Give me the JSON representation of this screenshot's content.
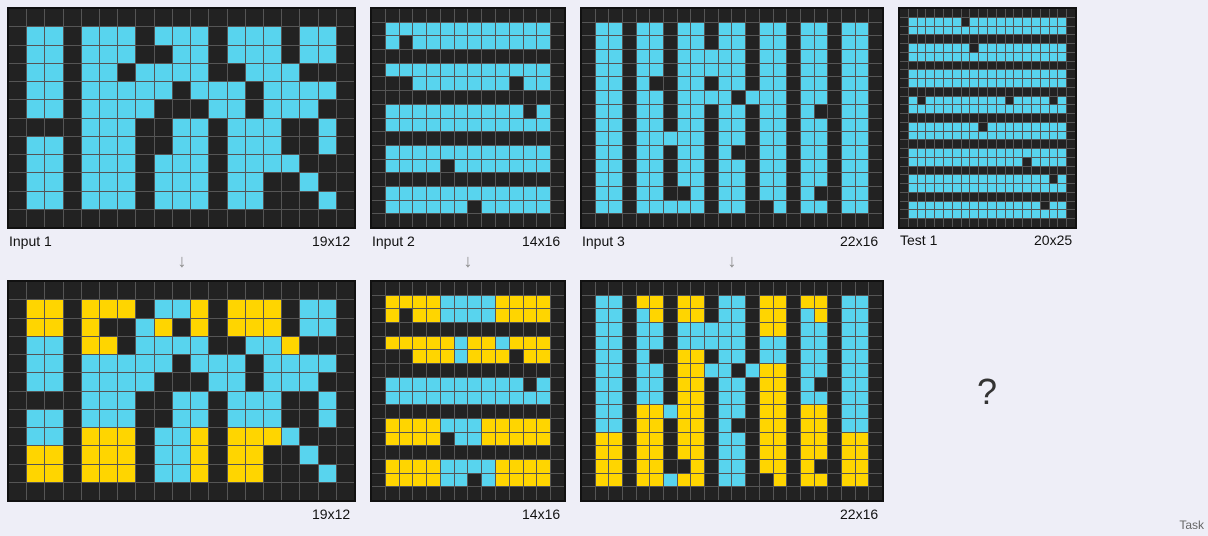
{
  "colors": {
    "black": "#222222",
    "cyan": "#58d4ee",
    "magenta": "#f216c6",
    "yellow": "#ffd500"
  },
  "pairs": [
    {
      "input_label": "Input 1",
      "input_size": "19x12",
      "output_size": "19x12"
    },
    {
      "input_label": "Input 2",
      "input_size": "14x16",
      "output_size": "14x16"
    },
    {
      "input_label": "Input 3",
      "input_size": "22x16",
      "output_size": "22x16"
    }
  ],
  "test": {
    "label": "Test 1",
    "size": "20x25",
    "output_placeholder": "?"
  },
  "footer": {
    "task_label": "Task"
  },
  "grids": {
    "in1": [
      "0000000000000000000",
      "0110111011101110110",
      "0110111001101110110",
      "0110110111100111000",
      "0110111110111011110",
      "0110111100011011100",
      "0000111001101110010",
      "0110111001101110010",
      "0110111011101111000",
      "0110111011101100100",
      "0110111011101100010",
      "0000000000000000000"
    ],
    "out1": [
      "0000000000000000000",
      "0330333011303330110",
      "0330300130303330110",
      "0110330111100113000",
      "0110111110111011110",
      "0110111100011011100",
      "0000111001101110010",
      "0110111001101110010",
      "0110333011303331000",
      "0330333011303300100",
      "0330333011303300010",
      "0000000000000000000"
    ],
    "in2": [
      "00000000000000",
      "01111111111110",
      "01011111111110",
      "00000000000000",
      "01111111111110",
      "00011111110110",
      "00000000000000",
      "01111111111010",
      "01111111111110",
      "00000000000000",
      "01111111111110",
      "01111011111110",
      "00000000000000",
      "01111111111110",
      "01111110111110",
      "00000000000000"
    ],
    "out2": [
      "00000000000000",
      "03333111133330",
      "03033111133330",
      "00000000000000",
      "03333313313330",
      "00033313330330",
      "00000000000000",
      "01111111111010",
      "01111111111110",
      "00000000000000",
      "03333111333330",
      "03333011333330",
      "00000000000000",
      "03333111133330",
      "03333110133330",
      "00000000000000"
    ],
    "in3": [
      "0000000000000000000000",
      "0110110110110110110110",
      "0110110110110110110110",
      "0110110111110110110110",
      "0110110111110110110110",
      "0110100110110110110110",
      "0110110111101110110110",
      "0110110110110110100110",
      "0110110110110110110110",
      "0110111110110110110110",
      "0110110110100110110110",
      "0110110110110110110110",
      "0110110110110110110110",
      "0110110010110110100110",
      "0110111110110010110110",
      "0000000000000000000000"
    ],
    "out3": [
      "0000000000000000000000",
      "0110330330110330330110",
      "0110130330110330130110",
      "0110110111110330110110",
      "0110110111110110110110",
      "0110100330110110110110",
      "0110110331101330110110",
      "0110110330110330100110",
      "0110110330110330110110",
      "0110331330110330330110",
      "0110330330100330330110",
      "0330330330110330330330",
      "0330330330110330330330",
      "0330330030110330300330",
      "0330331330110030330330",
      "0000000000000000000000"
    ],
    "test": [
      "00000000000000000000",
      "01111110111111111110",
      "01111111111111111110",
      "00000000000000000000",
      "01111111011111111110",
      "01111111111111111110",
      "00000000000000000000",
      "01111111111111111110",
      "01111111111111111110",
      "00000000000000000000",
      "01011111111101111010",
      "01111111111111111110",
      "00000000000000000000",
      "01111111101111111110",
      "01111111111111111110",
      "00000000000000000000",
      "01111111111111111110",
      "01111111111111011110",
      "00000000000000000000",
      "01111111111111111010",
      "01111111111111111110",
      "00000000000000000000",
      "01111111111111110110",
      "01111111111111111110",
      "00000000000000000000"
    ]
  }
}
